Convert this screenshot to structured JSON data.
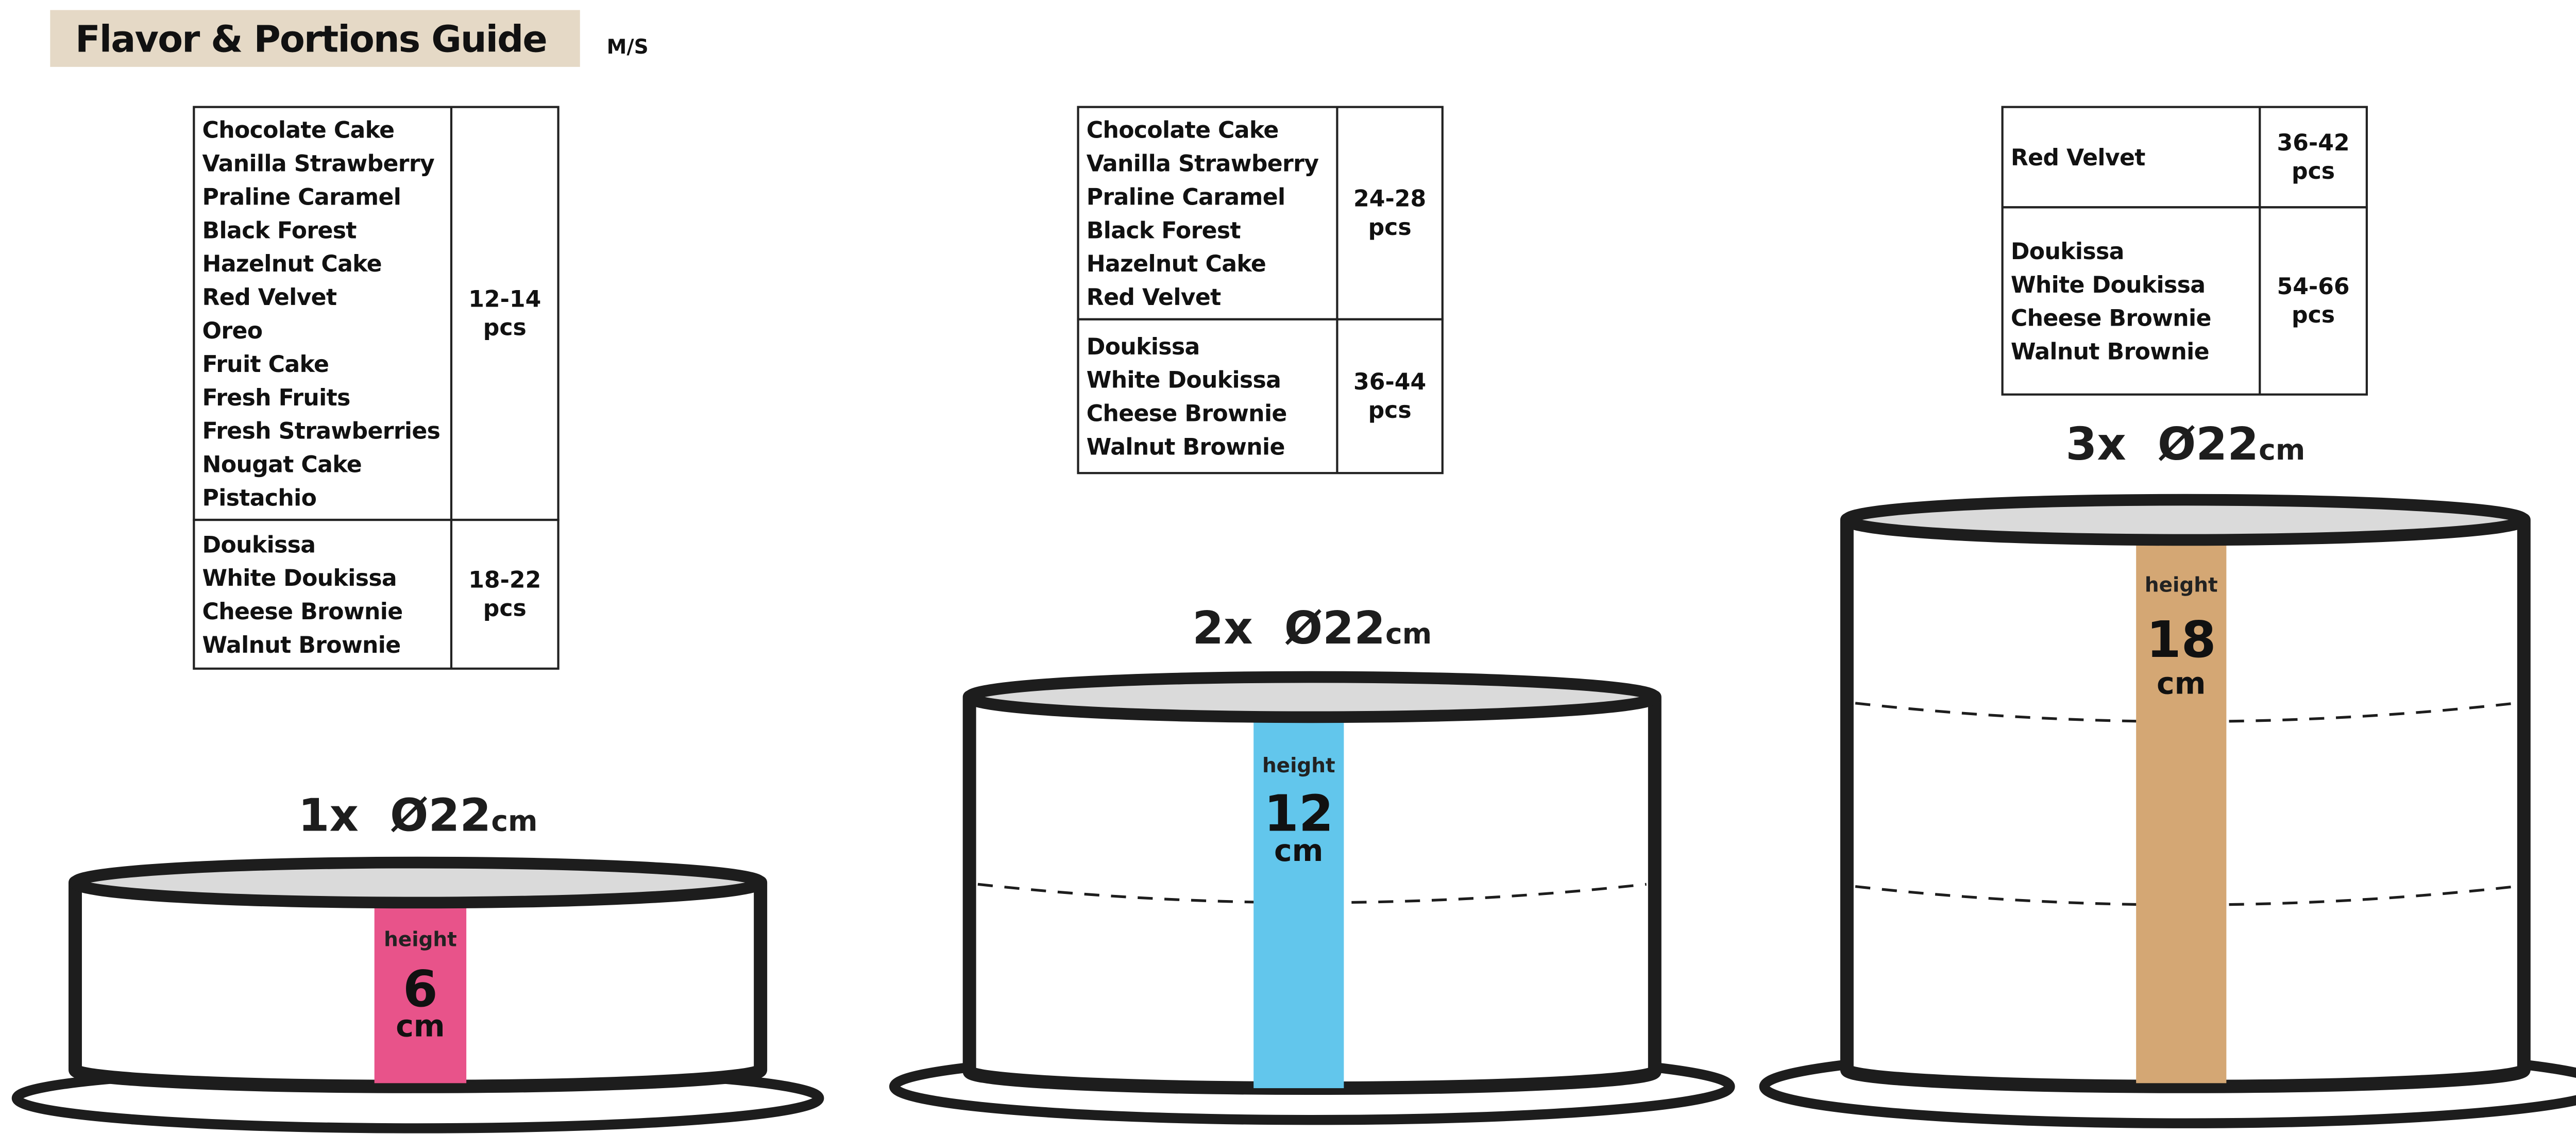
{
  "header": {
    "title": "Flavor & Portions Guide",
    "subtitle": "M/S",
    "title_bg": "#e5d9c6"
  },
  "tables": [
    {
      "rows": [
        {
          "flavors": [
            "Chocolate Cake",
            "Vanilla Strawberry",
            "Praline Caramel",
            "Black Forest",
            "Hazelnut Cake",
            "Red Velvet",
            "Oreo",
            "Fruit Cake",
            "Fresh Fruits",
            "Fresh Strawberries",
            "Nougat Cake",
            "Pistachio"
          ],
          "portion": "12-14",
          "unit": "pcs"
        },
        {
          "flavors": [
            "Doukissa",
            "White Doukissa",
            "Cheese Brownie",
            "Walnut Brownie"
          ],
          "portion": "18-22",
          "unit": "pcs"
        }
      ]
    },
    {
      "rows": [
        {
          "flavors": [
            "Chocolate Cake",
            "Vanilla Strawberry",
            "Praline Caramel",
            "Black Forest",
            "Hazelnut Cake",
            "Red Velvet"
          ],
          "portion": "24-28",
          "unit": "pcs"
        },
        {
          "flavors": [
            "Doukissa",
            "White Doukissa",
            "Cheese Brownie",
            "Walnut Brownie"
          ],
          "portion": "36-44",
          "unit": "pcs"
        }
      ]
    },
    {
      "rows": [
        {
          "flavors": [
            "Red Velvet"
          ],
          "portion": "36-42",
          "unit": "pcs"
        },
        {
          "flavors": [
            "Doukissa",
            "White Doukissa",
            "Cheese Brownie",
            "Walnut Brownie"
          ],
          "portion": "54-66",
          "unit": "pcs"
        }
      ]
    }
  ],
  "cakes": [
    {
      "label": "1x  Ø22",
      "label_unit": "cm",
      "height_word": "height",
      "height_value": "6",
      "height_unit": "cm",
      "layers": 1,
      "band_color": "#e8538a"
    },
    {
      "label": "2x  Ø22",
      "label_unit": "cm",
      "height_word": "height",
      "height_value": "12",
      "height_unit": "cm",
      "layers": 2,
      "band_color": "#62c6ec"
    },
    {
      "label": "3x  Ø22",
      "label_unit": "cm",
      "height_word": "height",
      "height_value": "18",
      "height_unit": "cm",
      "layers": 3,
      "band_color": "#d4a774"
    }
  ],
  "colors": {
    "outline": "#1d1d1d",
    "cake_top": "#dadada"
  }
}
